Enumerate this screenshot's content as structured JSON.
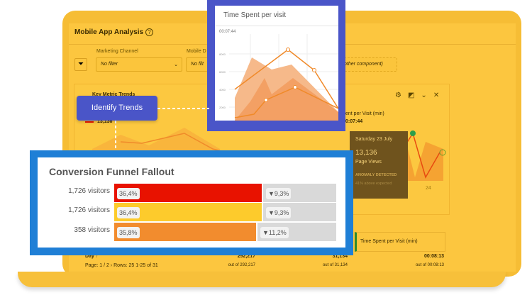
{
  "app": {
    "title": "Mobile App Analysis",
    "help_icon": "?"
  },
  "filters": [
    {
      "label": "Marketing Channel",
      "value": "No filter"
    },
    {
      "label": "Mobile D",
      "value": "No filt"
    },
    {
      "value": "other component)"
    }
  ],
  "panel": {
    "title": "Key Metric Trends",
    "metric1_value": "13,136",
    "metric3_label": "ent per Visit (min)",
    "metric3_value": "0:07:44",
    "x_tick": "24"
  },
  "popup": {
    "title": "Time Spent per visit",
    "value": "00:07:44",
    "y_ticks": [
      "8000",
      "6000",
      "4000",
      "2000"
    ]
  },
  "identify_button": "Identify Trends",
  "tooltip": {
    "date": "Saturday 23 July",
    "value": "13,136",
    "metric": "Page Views",
    "status": "ANOMALY DETECTED",
    "note": "41% above expected"
  },
  "funnel": {
    "title": "Conversion Funnel Fallout",
    "rows": [
      {
        "visitors": "1,726 visitors",
        "pct": "36,4%",
        "drop": "▼9,3%",
        "fill": 0.664,
        "color": "#e81200"
      },
      {
        "visitors": "1,726 visitors",
        "pct": "36,4%",
        "drop": "▼9,3%",
        "fill": 0.664,
        "color": "#fdcb2c"
      },
      {
        "visitors": "358 visitors",
        "pct": "35,8%",
        "drop": "▼11,2%",
        "fill": 0.638,
        "color": "#f28c2e"
      }
    ]
  },
  "table": {
    "col_label": "Day",
    "pagination": "Page: 1 / 2",
    "rows_label": "Rows: 25",
    "range": "1-25 of 31",
    "metric_header": "Time Spent per Visit (min)",
    "totals": [
      {
        "value": "292,217",
        "sub": "out of 292,217"
      },
      {
        "value": "31,134",
        "sub": "out of 31,134"
      },
      {
        "value": "00:08:13",
        "sub": "out of 00:08:13"
      }
    ]
  }
}
